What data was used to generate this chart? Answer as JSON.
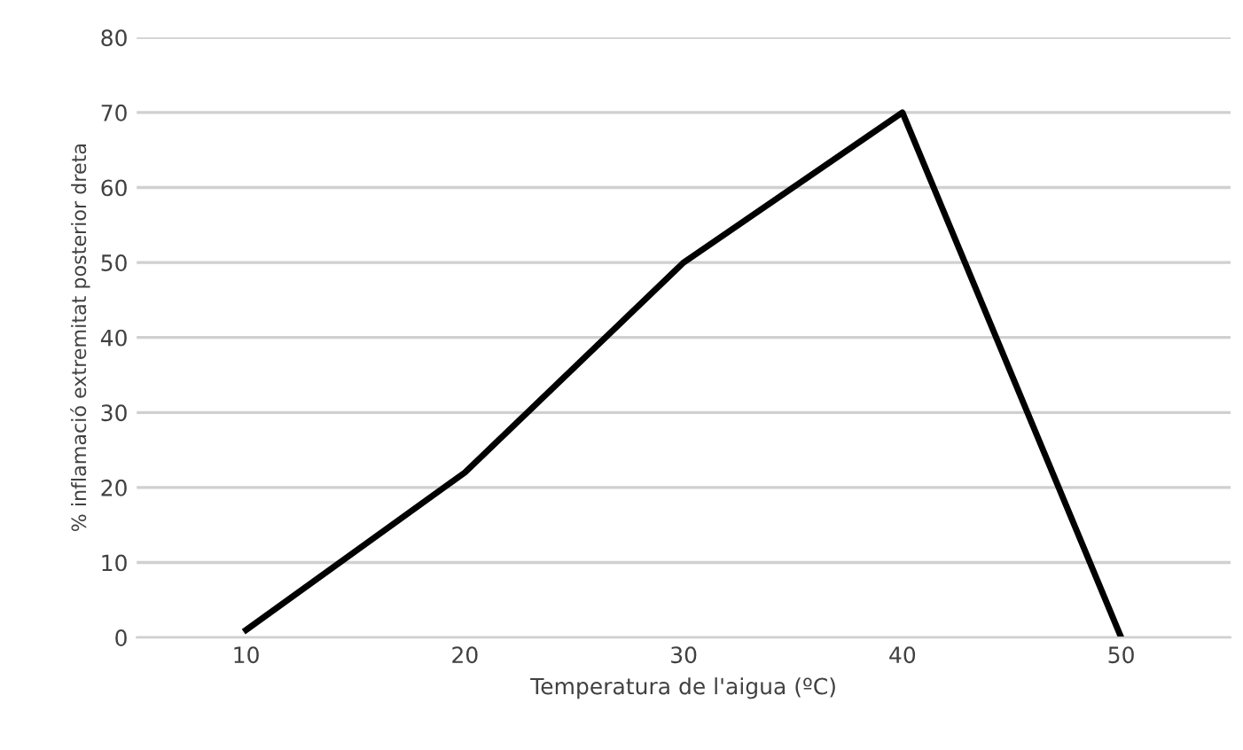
{
  "chart_data": {
    "type": "line",
    "xlabel": "Temperatura de l'aigua (ºC)",
    "ylabel": "% inflamació extremitat posterior dreta",
    "categories": [
      "10",
      "20",
      "30",
      "40",
      "50"
    ],
    "series": [
      {
        "color": "#000000",
        "values": [
          1,
          22,
          50,
          70,
          0
        ]
      }
    ],
    "ylim": [
      0,
      80
    ],
    "yticks": [
      0,
      10,
      20,
      30,
      40,
      50,
      60,
      70,
      80
    ],
    "grid": "y",
    "legend": false,
    "marker": "none",
    "line_style": "solid"
  }
}
